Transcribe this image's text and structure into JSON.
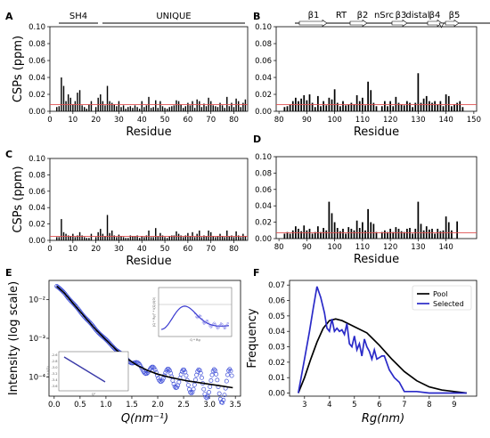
{
  "panel_labels": {
    "A": "A",
    "B": "B",
    "C": "C",
    "D": "D",
    "E": "E",
    "F": "F"
  },
  "domains": {
    "sh4": "SH4",
    "unique": "UNIQUE"
  },
  "secondary_structure": {
    "b1": "β1",
    "rt": "RT",
    "b2": "β2",
    "nsrc": "nSrc",
    "b3": "β3",
    "distal": "distal",
    "b4": "β4",
    "b5": "β5"
  },
  "chart_data": [
    {
      "panel": "A",
      "type": "bar",
      "xlabel": "Residue",
      "ylabel": "CSPs (ppm)",
      "xlim": [
        0,
        86
      ],
      "ylim": [
        0,
        0.1
      ],
      "xticks": [
        0,
        10,
        20,
        30,
        40,
        50,
        60,
        70,
        80
      ],
      "yticks": [
        0.0,
        0.02,
        0.04,
        0.06,
        0.08,
        0.1
      ],
      "threshold": 0.008,
      "x": [
        3,
        4,
        5,
        6,
        7,
        8,
        9,
        10,
        11,
        12,
        13,
        14,
        15,
        16,
        17,
        18,
        20,
        21,
        22,
        23,
        24,
        25,
        26,
        27,
        28,
        29,
        30,
        31,
        32,
        33,
        34,
        35,
        36,
        37,
        38,
        39,
        40,
        41,
        42,
        43,
        44,
        45,
        46,
        47,
        48,
        49,
        50,
        51,
        52,
        53,
        54,
        55,
        56,
        57,
        58,
        59,
        60,
        61,
        62,
        63,
        64,
        65,
        66,
        67,
        68,
        69,
        70,
        71,
        72,
        73,
        74,
        75,
        76,
        77,
        78,
        79,
        80,
        81,
        82,
        83,
        84,
        85
      ],
      "values": [
        0.005,
        0.006,
        0.04,
        0.03,
        0.012,
        0.02,
        0.016,
        0.008,
        0.012,
        0.022,
        0.025,
        0.007,
        0.005,
        0.003,
        0.008,
        0.012,
        0.005,
        0.016,
        0.02,
        0.012,
        0.007,
        0.03,
        0.012,
        0.01,
        0.008,
        0.006,
        0.012,
        0.005,
        0.007,
        0.003,
        0.005,
        0.006,
        0.004,
        0.007,
        0.005,
        0.003,
        0.012,
        0.005,
        0.007,
        0.017,
        0.004,
        0.005,
        0.013,
        0.004,
        0.012,
        0.006,
        0.004,
        0.003,
        0.005,
        0.006,
        0.007,
        0.013,
        0.012,
        0.008,
        0.004,
        0.006,
        0.01,
        0.007,
        0.012,
        0.004,
        0.014,
        0.012,
        0.005,
        0.009,
        0.006,
        0.016,
        0.012,
        0.007,
        0.006,
        0.005,
        0.01,
        0.007,
        0.004,
        0.017,
        0.006,
        0.01,
        0.005,
        0.015,
        0.012,
        0.005,
        0.01,
        0.014
      ]
    },
    {
      "panel": "B",
      "type": "bar",
      "xlabel": "Residue",
      "ylabel": "",
      "xlim": [
        79,
        151
      ],
      "ylim": [
        0,
        0.1
      ],
      "xticks": [
        80,
        90,
        100,
        110,
        120,
        130,
        140,
        150
      ],
      "yticks": [
        0.0,
        0.02,
        0.04,
        0.06,
        0.08,
        0.1
      ],
      "threshold": 0.008,
      "x": [
        82,
        83,
        84,
        85,
        86,
        87,
        88,
        89,
        90,
        91,
        92,
        93,
        94,
        95,
        96,
        97,
        98,
        99,
        100,
        101,
        102,
        103,
        104,
        105,
        106,
        107,
        108,
        109,
        110,
        111,
        112,
        113,
        114,
        115,
        117,
        118,
        119,
        120,
        121,
        122,
        123,
        124,
        125,
        126,
        127,
        128,
        129,
        130,
        131,
        132,
        133,
        134,
        135,
        136,
        137,
        138,
        139,
        140,
        141,
        142,
        143,
        144,
        145,
        146
      ],
      "values": [
        0.005,
        0.006,
        0.008,
        0.012,
        0.016,
        0.012,
        0.015,
        0.019,
        0.013,
        0.02,
        0.01,
        0.005,
        0.018,
        0.006,
        0.012,
        0.007,
        0.016,
        0.014,
        0.026,
        0.01,
        0.006,
        0.012,
        0.007,
        0.008,
        0.01,
        0.008,
        0.019,
        0.012,
        0.016,
        0.007,
        0.035,
        0.025,
        0.01,
        0.006,
        0.006,
        0.012,
        0.006,
        0.012,
        0.006,
        0.017,
        0.01,
        0.008,
        0.007,
        0.012,
        0.01,
        0.005,
        0.01,
        0.045,
        0.01,
        0.015,
        0.018,
        0.012,
        0.01,
        0.012,
        0.008,
        0.012,
        0.006,
        0.02,
        0.018,
        0.006,
        0.008,
        0.01,
        0.012,
        0.005
      ]
    },
    {
      "panel": "C",
      "type": "bar",
      "xlabel": "Residue",
      "ylabel": "CSPs (ppm)",
      "xlim": [
        0,
        86
      ],
      "ylim": [
        0,
        0.1
      ],
      "xticks": [
        0,
        10,
        20,
        30,
        40,
        50,
        60,
        70,
        80
      ],
      "yticks": [
        0.0,
        0.02,
        0.04,
        0.06,
        0.08,
        0.1
      ],
      "threshold": 0.005,
      "x": [
        3,
        4,
        5,
        6,
        7,
        8,
        9,
        10,
        11,
        12,
        13,
        14,
        15,
        16,
        17,
        18,
        20,
        21,
        22,
        23,
        24,
        25,
        26,
        27,
        28,
        29,
        30,
        31,
        32,
        33,
        34,
        35,
        36,
        37,
        38,
        39,
        40,
        41,
        42,
        43,
        44,
        45,
        46,
        47,
        48,
        49,
        50,
        51,
        52,
        53,
        54,
        55,
        56,
        57,
        58,
        59,
        60,
        61,
        62,
        63,
        64,
        65,
        66,
        67,
        68,
        69,
        70,
        71,
        72,
        73,
        74,
        75,
        76,
        77,
        78,
        79,
        80,
        81,
        82,
        83,
        84,
        85
      ],
      "values": [
        0.004,
        0.004,
        0.026,
        0.01,
        0.008,
        0.006,
        0.005,
        0.008,
        0.004,
        0.006,
        0.01,
        0.006,
        0.004,
        0.003,
        0.003,
        0.008,
        0.004,
        0.01,
        0.014,
        0.008,
        0.005,
        0.031,
        0.009,
        0.012,
        0.006,
        0.004,
        0.007,
        0.005,
        0.004,
        0.003,
        0.003,
        0.006,
        0.005,
        0.005,
        0.006,
        0.003,
        0.005,
        0.004,
        0.006,
        0.012,
        0.004,
        0.004,
        0.015,
        0.005,
        0.009,
        0.006,
        0.004,
        0.003,
        0.005,
        0.006,
        0.006,
        0.011,
        0.008,
        0.006,
        0.004,
        0.006,
        0.009,
        0.005,
        0.01,
        0.004,
        0.008,
        0.012,
        0.004,
        0.006,
        0.005,
        0.012,
        0.01,
        0.005,
        0.004,
        0.005,
        0.008,
        0.005,
        0.004,
        0.012,
        0.005,
        0.006,
        0.004,
        0.011,
        0.006,
        0.004,
        0.008,
        0.005
      ]
    },
    {
      "panel": "D",
      "type": "bar",
      "xlabel": "Residue",
      "ylabel": "",
      "xlim": [
        79,
        151
      ],
      "ylim": [
        0,
        0.1
      ],
      "xticks": [
        80,
        90,
        100,
        110,
        120,
        130,
        140
      ],
      "yticks": [
        0.0,
        0.02,
        0.04,
        0.06,
        0.08,
        0.1
      ],
      "threshold": 0.007,
      "x": [
        82,
        83,
        84,
        85,
        86,
        87,
        88,
        89,
        90,
        91,
        92,
        93,
        94,
        95,
        96,
        97,
        98,
        99,
        100,
        101,
        102,
        103,
        104,
        105,
        106,
        107,
        108,
        109,
        110,
        111,
        112,
        113,
        114,
        115,
        117,
        118,
        119,
        120,
        121,
        122,
        123,
        124,
        125,
        126,
        127,
        128,
        129,
        130,
        131,
        132,
        133,
        134,
        135,
        136,
        137,
        138,
        139,
        140,
        141,
        142,
        144
      ],
      "values": [
        0.006,
        0.008,
        0.006,
        0.01,
        0.015,
        0.012,
        0.009,
        0.016,
        0.01,
        0.012,
        0.006,
        0.008,
        0.015,
        0.008,
        0.013,
        0.01,
        0.045,
        0.031,
        0.02,
        0.013,
        0.009,
        0.012,
        0.006,
        0.014,
        0.012,
        0.01,
        0.022,
        0.013,
        0.02,
        0.01,
        0.036,
        0.02,
        0.018,
        0.008,
        0.008,
        0.01,
        0.008,
        0.012,
        0.008,
        0.014,
        0.012,
        0.009,
        0.008,
        0.012,
        0.013,
        0.006,
        0.012,
        0.045,
        0.018,
        0.01,
        0.015,
        0.011,
        0.012,
        0.006,
        0.012,
        0.009,
        0.01,
        0.027,
        0.02,
        0.01,
        0.021
      ]
    },
    {
      "panel": "E",
      "type": "scatter",
      "xlabel": "Q(nm⁻¹)",
      "ylabel": "Intensity (log scale)",
      "xlim": [
        -0.1,
        3.6
      ],
      "ylim_log": [
        -4.5,
        -1.5
      ],
      "yscale": "log",
      "xticks": [
        0.0,
        0.5,
        1.0,
        1.5,
        2.0,
        2.5,
        3.0,
        3.5
      ],
      "yticks": [
        0.01,
        0.001,
        0.0001
      ],
      "yticklabels": [
        "10⁻²",
        "10⁻³",
        "10⁻⁴"
      ],
      "fit_x": [
        0.05,
        0.2,
        0.4,
        0.6,
        0.8,
        1.0,
        1.2,
        1.4,
        1.6,
        1.8,
        2.0,
        2.2,
        2.4,
        2.6,
        2.8,
        3.0,
        3.2,
        3.45
      ],
      "fit_logy": [
        -1.65,
        -1.83,
        -2.15,
        -2.46,
        -2.77,
        -3.04,
        -3.3,
        -3.52,
        -3.7,
        -3.83,
        -3.93,
        -4.0,
        -4.06,
        -4.11,
        -4.15,
        -4.19,
        -4.23,
        -4.28
      ],
      "insets": {
        "guinier": {
          "xlabel": "Q²",
          "ylabel": "Ln I(Q)",
          "yticks": [
            "-2.6",
            "-2.8",
            "-3.0",
            "-3.2",
            "-3.4",
            "-3.6"
          ]
        },
        "kratky": {
          "xlabel": "Q * Rg",
          "ylabel": "(Q * Rg)² * I(Q)/I(0)"
        }
      }
    },
    {
      "panel": "F",
      "type": "line",
      "xlabel": "Rg(nm)",
      "ylabel": "Frequency",
      "xlim": [
        2.4,
        9.9
      ],
      "ylim": [
        -0.002,
        0.073
      ],
      "xticks": [
        3,
        4,
        5,
        6,
        7,
        8,
        9
      ],
      "yticks": [
        0.0,
        0.01,
        0.02,
        0.03,
        0.04,
        0.05,
        0.06,
        0.07
      ],
      "yticklabels": [
        "0.00",
        "0.01",
        "0.02",
        "0.03",
        "0.04",
        "0.05",
        "0.06",
        "0.07"
      ],
      "series": [
        {
          "name": "Pool",
          "color": "#000000",
          "x": [
            2.75,
            3.0,
            3.25,
            3.5,
            3.75,
            4.0,
            4.25,
            4.5,
            4.75,
            5.0,
            5.5,
            6.0,
            6.5,
            7.0,
            7.5,
            8.0,
            8.5,
            9.0,
            9.5
          ],
          "values": [
            0.0,
            0.01,
            0.022,
            0.033,
            0.042,
            0.047,
            0.048,
            0.047,
            0.045,
            0.043,
            0.039,
            0.031,
            0.022,
            0.014,
            0.008,
            0.004,
            0.002,
            0.001,
            0.0
          ]
        },
        {
          "name": "Selected",
          "color": "#2a2ac8",
          "x": [
            2.75,
            3.0,
            3.2,
            3.35,
            3.5,
            3.65,
            3.8,
            3.9,
            4.0,
            4.1,
            4.2,
            4.3,
            4.4,
            4.5,
            4.6,
            4.7,
            4.8,
            4.9,
            5.0,
            5.1,
            5.2,
            5.3,
            5.4,
            5.5,
            5.6,
            5.7,
            5.8,
            5.9,
            6.0,
            6.1,
            6.2,
            6.4,
            6.6,
            6.8,
            7.0,
            7.2,
            7.5,
            8.0,
            9.0,
            9.5
          ],
          "values": [
            0.0,
            0.022,
            0.04,
            0.055,
            0.069,
            0.062,
            0.052,
            0.042,
            0.04,
            0.048,
            0.04,
            0.042,
            0.04,
            0.041,
            0.038,
            0.045,
            0.032,
            0.03,
            0.037,
            0.028,
            0.032,
            0.024,
            0.035,
            0.03,
            0.027,
            0.022,
            0.028,
            0.022,
            0.023,
            0.024,
            0.024,
            0.015,
            0.01,
            0.007,
            0.001,
            0.001,
            0.001,
            0.0,
            0.0,
            0.0
          ]
        }
      ]
    }
  ]
}
